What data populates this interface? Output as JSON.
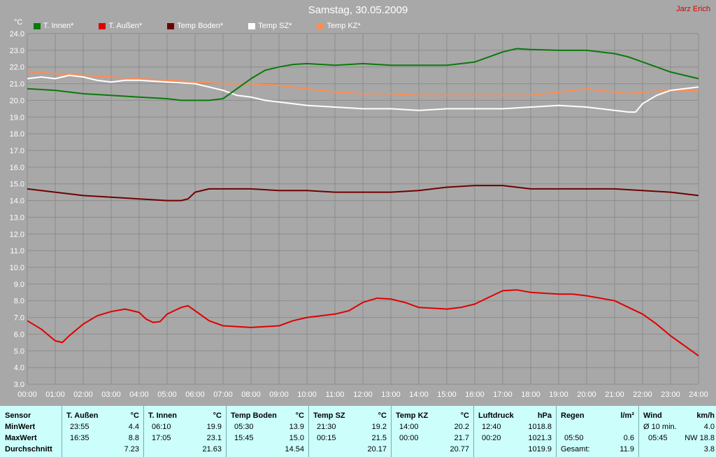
{
  "title": "Samstag, 30.05.2009",
  "credit": "Jarz Erich",
  "unit_label": "°C",
  "colors": {
    "background": "#a8a8a8",
    "grid": "#8c8c8c",
    "T. Innen*": "#0a7a0a",
    "T. Außen*": "#e00000",
    "Temp Boden*": "#700000",
    "Temp SZ*": "#ffffff",
    "Temp KZ*": "#ff8c50",
    "table_bg": "#ccfffc"
  },
  "chart_data": {
    "type": "line",
    "title": "Samstag, 30.05.2009",
    "xlabel": "",
    "ylabel": "°C",
    "ylim": [
      3.0,
      24.0
    ],
    "xlim": [
      "00:00",
      "24:00"
    ],
    "grid": true,
    "legend_placement": "top-left",
    "x_ticks": [
      "00:00",
      "01:00",
      "02:00",
      "03:00",
      "04:00",
      "05:00",
      "06:00",
      "07:00",
      "08:00",
      "09:00",
      "10:00",
      "11:00",
      "12:00",
      "13:00",
      "14:00",
      "15:00",
      "16:00",
      "17:00",
      "18:00",
      "19:00",
      "20:00",
      "21:00",
      "22:00",
      "23:00",
      "24:00"
    ],
    "y_ticks": [
      "3.0",
      "4.0",
      "5.0",
      "6.0",
      "7.0",
      "8.0",
      "9.0",
      "10.0",
      "11.0",
      "12.0",
      "13.0",
      "14.0",
      "15.0",
      "16.0",
      "17.0",
      "18.0",
      "19.0",
      "20.0",
      "21.0",
      "22.0",
      "23.0",
      "24.0"
    ],
    "series": [
      {
        "name": "T. Innen*",
        "color": "#0a7a0a",
        "points": [
          [
            "00:00",
            20.7
          ],
          [
            "01:00",
            20.6
          ],
          [
            "02:00",
            20.4
          ],
          [
            "03:00",
            20.3
          ],
          [
            "04:00",
            20.2
          ],
          [
            "05:00",
            20.1
          ],
          [
            "05:30",
            20.0
          ],
          [
            "06:00",
            20.0
          ],
          [
            "06:30",
            20.0
          ],
          [
            "07:00",
            20.1
          ],
          [
            "07:30",
            20.7
          ],
          [
            "08:00",
            21.3
          ],
          [
            "08:30",
            21.8
          ],
          [
            "09:00",
            22.0
          ],
          [
            "09:30",
            22.15
          ],
          [
            "10:00",
            22.2
          ],
          [
            "11:00",
            22.1
          ],
          [
            "12:00",
            22.2
          ],
          [
            "13:00",
            22.1
          ],
          [
            "14:00",
            22.1
          ],
          [
            "15:00",
            22.1
          ],
          [
            "16:00",
            22.3
          ],
          [
            "16:30",
            22.6
          ],
          [
            "17:00",
            22.9
          ],
          [
            "17:30",
            23.1
          ],
          [
            "18:00",
            23.05
          ],
          [
            "19:00",
            23.0
          ],
          [
            "20:00",
            23.0
          ],
          [
            "20:30",
            22.9
          ],
          [
            "21:00",
            22.8
          ],
          [
            "21:30",
            22.6
          ],
          [
            "22:00",
            22.3
          ],
          [
            "22:30",
            22.0
          ],
          [
            "23:00",
            21.7
          ],
          [
            "23:30",
            21.5
          ],
          [
            "24:00",
            21.3
          ]
        ]
      },
      {
        "name": "T. Außen*",
        "color": "#e00000",
        "points": [
          [
            "00:00",
            6.8
          ],
          [
            "00:30",
            6.3
          ],
          [
            "01:00",
            5.6
          ],
          [
            "01:15",
            5.5
          ],
          [
            "01:30",
            5.9
          ],
          [
            "02:00",
            6.6
          ],
          [
            "02:30",
            7.1
          ],
          [
            "03:00",
            7.35
          ],
          [
            "03:30",
            7.5
          ],
          [
            "04:00",
            7.3
          ],
          [
            "04:15",
            6.9
          ],
          [
            "04:30",
            6.7
          ],
          [
            "04:45",
            6.75
          ],
          [
            "05:00",
            7.2
          ],
          [
            "05:30",
            7.6
          ],
          [
            "05:45",
            7.7
          ],
          [
            "06:00",
            7.4
          ],
          [
            "06:30",
            6.8
          ],
          [
            "07:00",
            6.5
          ],
          [
            "08:00",
            6.4
          ],
          [
            "09:00",
            6.5
          ],
          [
            "09:30",
            6.8
          ],
          [
            "10:00",
            7.0
          ],
          [
            "11:00",
            7.2
          ],
          [
            "11:30",
            7.4
          ],
          [
            "12:00",
            7.9
          ],
          [
            "12:30",
            8.15
          ],
          [
            "13:00",
            8.1
          ],
          [
            "13:30",
            7.9
          ],
          [
            "14:00",
            7.6
          ],
          [
            "15:00",
            7.5
          ],
          [
            "15:30",
            7.6
          ],
          [
            "16:00",
            7.8
          ],
          [
            "16:30",
            8.2
          ],
          [
            "17:00",
            8.6
          ],
          [
            "17:30",
            8.65
          ],
          [
            "18:00",
            8.5
          ],
          [
            "19:00",
            8.4
          ],
          [
            "19:30",
            8.4
          ],
          [
            "20:00",
            8.3
          ],
          [
            "21:00",
            8.0
          ],
          [
            "21:30",
            7.6
          ],
          [
            "22:00",
            7.2
          ],
          [
            "22:30",
            6.6
          ],
          [
            "23:00",
            5.9
          ],
          [
            "23:30",
            5.3
          ],
          [
            "24:00",
            4.7
          ]
        ]
      },
      {
        "name": "Temp Boden*",
        "color": "#700000",
        "points": [
          [
            "00:00",
            14.7
          ],
          [
            "01:00",
            14.5
          ],
          [
            "02:00",
            14.3
          ],
          [
            "03:00",
            14.2
          ],
          [
            "04:00",
            14.1
          ],
          [
            "05:00",
            14.0
          ],
          [
            "05:30",
            14.0
          ],
          [
            "05:45",
            14.1
          ],
          [
            "06:00",
            14.5
          ],
          [
            "06:30",
            14.7
          ],
          [
            "07:00",
            14.7
          ],
          [
            "08:00",
            14.7
          ],
          [
            "09:00",
            14.6
          ],
          [
            "10:00",
            14.6
          ],
          [
            "11:00",
            14.5
          ],
          [
            "12:00",
            14.5
          ],
          [
            "13:00",
            14.5
          ],
          [
            "14:00",
            14.6
          ],
          [
            "15:00",
            14.8
          ],
          [
            "16:00",
            14.9
          ],
          [
            "17:00",
            14.9
          ],
          [
            "18:00",
            14.7
          ],
          [
            "19:00",
            14.7
          ],
          [
            "20:00",
            14.7
          ],
          [
            "21:00",
            14.7
          ],
          [
            "22:00",
            14.6
          ],
          [
            "23:00",
            14.5
          ],
          [
            "24:00",
            14.3
          ]
        ]
      },
      {
        "name": "Temp SZ*",
        "color": "#ffffff",
        "points": [
          [
            "00:00",
            21.3
          ],
          [
            "00:30",
            21.4
          ],
          [
            "01:00",
            21.3
          ],
          [
            "01:30",
            21.5
          ],
          [
            "02:00",
            21.4
          ],
          [
            "02:30",
            21.2
          ],
          [
            "03:00",
            21.1
          ],
          [
            "03:30",
            21.2
          ],
          [
            "04:00",
            21.2
          ],
          [
            "05:00",
            21.1
          ],
          [
            "06:00",
            21.0
          ],
          [
            "06:30",
            20.8
          ],
          [
            "07:00",
            20.6
          ],
          [
            "07:30",
            20.3
          ],
          [
            "08:00",
            20.2
          ],
          [
            "08:30",
            20.0
          ],
          [
            "09:00",
            19.9
          ],
          [
            "10:00",
            19.7
          ],
          [
            "11:00",
            19.6
          ],
          [
            "12:00",
            19.5
          ],
          [
            "13:00",
            19.5
          ],
          [
            "14:00",
            19.4
          ],
          [
            "15:00",
            19.5
          ],
          [
            "16:00",
            19.5
          ],
          [
            "17:00",
            19.5
          ],
          [
            "18:00",
            19.6
          ],
          [
            "19:00",
            19.7
          ],
          [
            "20:00",
            19.6
          ],
          [
            "21:00",
            19.4
          ],
          [
            "21:30",
            19.3
          ],
          [
            "21:45",
            19.3
          ],
          [
            "22:00",
            19.8
          ],
          [
            "22:30",
            20.3
          ],
          [
            "23:00",
            20.6
          ],
          [
            "23:30",
            20.7
          ],
          [
            "24:00",
            20.8
          ]
        ]
      },
      {
        "name": "Temp KZ*",
        "color": "#ff8c50",
        "points": [
          [
            "00:00",
            21.7
          ],
          [
            "01:00",
            21.6
          ],
          [
            "02:00",
            21.5
          ],
          [
            "03:00",
            21.4
          ],
          [
            "04:00",
            21.3
          ],
          [
            "05:00",
            21.2
          ],
          [
            "06:00",
            21.1
          ],
          [
            "07:00",
            21.0
          ],
          [
            "08:00",
            21.0
          ],
          [
            "09:00",
            20.9
          ],
          [
            "10:00",
            20.7
          ],
          [
            "11:00",
            20.5
          ],
          [
            "12:00",
            20.4
          ],
          [
            "13:00",
            20.4
          ],
          [
            "14:00",
            20.3
          ],
          [
            "15:00",
            20.3
          ],
          [
            "16:00",
            20.3
          ],
          [
            "17:00",
            20.3
          ],
          [
            "18:00",
            20.3
          ],
          [
            "19:00",
            20.5
          ],
          [
            "20:00",
            20.7
          ],
          [
            "21:00",
            20.5
          ],
          [
            "21:30",
            20.4
          ],
          [
            "22:00",
            20.5
          ],
          [
            "23:00",
            20.6
          ],
          [
            "24:00",
            20.6
          ]
        ]
      }
    ]
  },
  "table": {
    "sensor": {
      "header": "Sensor",
      "min_label": "MinWert",
      "max_label": "MaxWert",
      "avg_label": "Durchschnitt"
    },
    "columns": [
      {
        "name": "T. Außen",
        "unit": "°C",
        "min_time": "23:55",
        "min": "4.4",
        "max_time": "16:35",
        "max": "8.8",
        "avg": "7.23"
      },
      {
        "name": "T. Innen",
        "unit": "°C",
        "min_time": "06:10",
        "min": "19.9",
        "max_time": "17:05",
        "max": "23.1",
        "avg": "21.63"
      },
      {
        "name": "Temp Boden",
        "unit": "°C",
        "min_time": "05:30",
        "min": "13.9",
        "max_time": "15:45",
        "max": "15.0",
        "avg": "14.54"
      },
      {
        "name": "Temp SZ",
        "unit": "°C",
        "min_time": "21:30",
        "min": "19.2",
        "max_time": "00:15",
        "max": "21.5",
        "avg": "20.17"
      },
      {
        "name": "Temp KZ",
        "unit": "°C",
        "min_time": "14:00",
        "min": "20.2",
        "max_time": "00:00",
        "max": "21.7",
        "avg": "20.77"
      },
      {
        "name": "Luftdruck",
        "unit": "hPa",
        "min_time": "12:40",
        "min": "1018.8",
        "max_time": "00:20",
        "max": "1021.3",
        "avg": "1019.9"
      }
    ],
    "rain": {
      "name": "Regen",
      "unit": "l/m²",
      "row2_time": "05:50",
      "row2_val": "0.6",
      "row3_label": "Gesamt:",
      "row3_val": "11.9"
    },
    "wind": {
      "name": "Wind",
      "unit": "km/h",
      "row1_label": "Ø 10 min.",
      "row1_val": "4.0",
      "row2_time": "05:45",
      "row2_val": "NW 18.8",
      "row3_val": "3.8"
    }
  }
}
